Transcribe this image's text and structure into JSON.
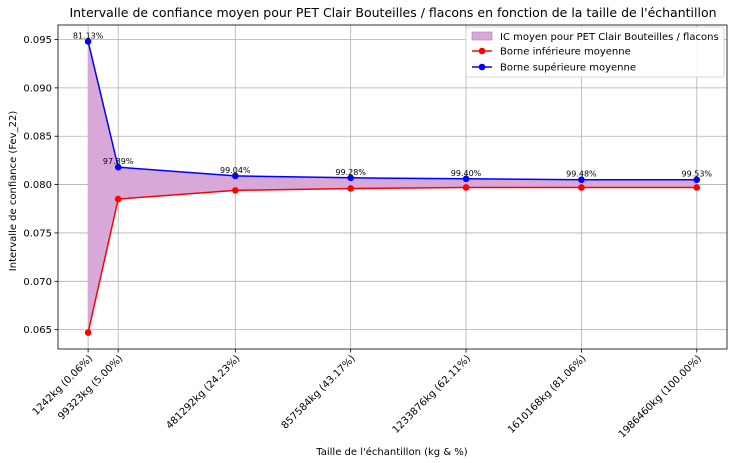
{
  "chart_data": {
    "type": "line",
    "title": "Intervalle de confiance moyen pour PET Clair Bouteilles / flacons en fonction de la taille de l'échantillon",
    "xlabel": "Taille de l'échantillon (kg & %)",
    "ylabel": "Intervalle de confiance (Fev_22)",
    "categories": [
      "1242kg (0.06%)",
      "99323kg (5.00%)",
      "481292kg (24.23%)",
      "857584kg (43.17%)",
      "1233876kg (62.11%)",
      "1610168kg (81.06%)",
      "1986460kg (100.00%)"
    ],
    "x": [
      1242,
      99323,
      481292,
      857584,
      1233876,
      1610168,
      1986460
    ],
    "series": [
      {
        "name": "Borne inférieure moyenne",
        "color": "#ff0000",
        "values": [
          0.0647,
          0.0785,
          0.0794,
          0.0796,
          0.0797,
          0.0797,
          0.0797
        ]
      },
      {
        "name": "Borne supérieure moyenne",
        "color": "#0000ff",
        "values": [
          0.0948,
          0.0818,
          0.0809,
          0.0807,
          0.0806,
          0.0805,
          0.0805
        ]
      }
    ],
    "fill": {
      "name": "IC moyen pour PET Clair Bouteilles / flacons",
      "color": "#d8a9d8"
    },
    "data_labels": [
      "81.13%",
      "97.89%",
      "99.04%",
      "99.28%",
      "99.40%",
      "99.48%",
      "99.53%"
    ],
    "ylim": [
      0.063,
      0.0965
    ],
    "yticks": [
      0.065,
      0.07,
      0.075,
      0.08,
      0.085,
      0.09,
      0.095
    ],
    "ytick_labels": [
      "0.065",
      "0.070",
      "0.075",
      "0.080",
      "0.085",
      "0.090",
      "0.095"
    ],
    "xlim": [
      -97000,
      2085000
    ],
    "grid": true,
    "legend_position": "top-right"
  }
}
